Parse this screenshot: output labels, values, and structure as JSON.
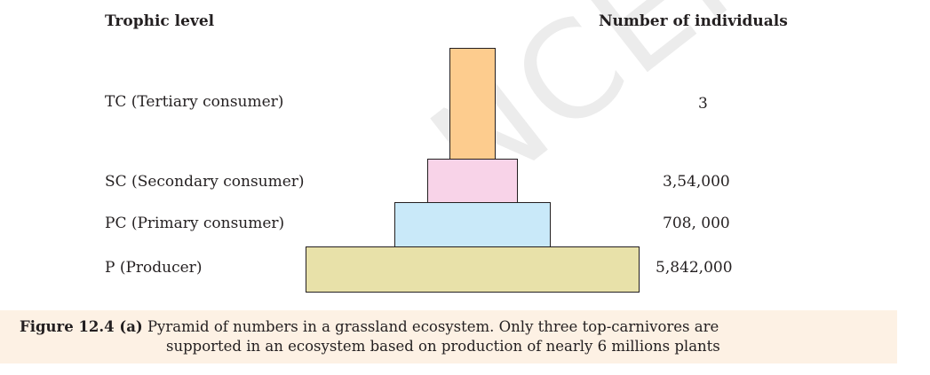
{
  "headers": {
    "trophic_level": "Trophic level",
    "number_of_individuals": "Number of individuals"
  },
  "levels": [
    {
      "label": "TC (Tertiary consumer)",
      "count": "3",
      "color": "#fdcc8e"
    },
    {
      "label": "SC (Secondary consumer)",
      "count": "3,54,000",
      "color": "#f8d3e8"
    },
    {
      "label": "PC (Primary consumer)",
      "count": "708, 000",
      "color": "#c9e9f9"
    },
    {
      "label": "P (Producer)",
      "count": "5,842,000",
      "color": "#e8e1a9"
    }
  ],
  "caption": {
    "figure_number": "Figure 12.4 (a)",
    "line1": "Pyramid of numbers in a grassland ecosystem. Only three top-carnivores are",
    "line2": "supported in an ecosystem based on production of nearly 6 millions plants",
    "background": "#fdf1e4"
  },
  "watermark": "NCERT Published"
}
